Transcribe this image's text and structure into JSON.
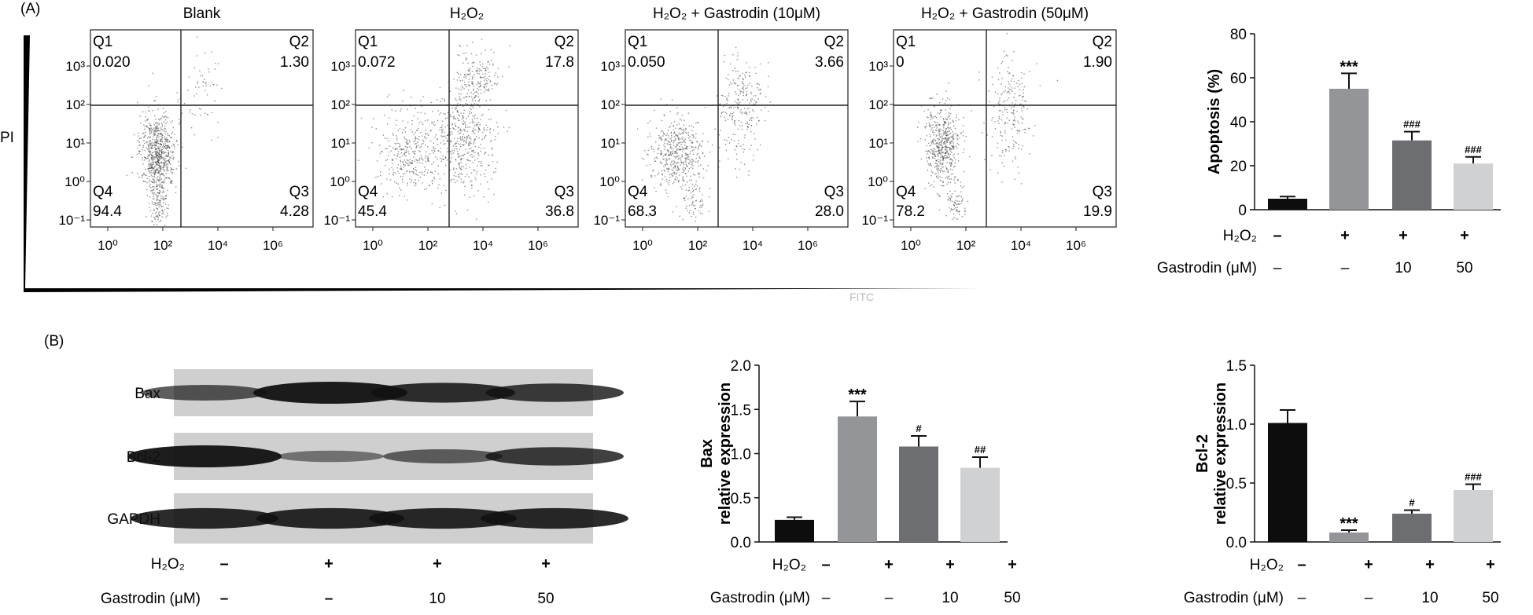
{
  "panel_labels": {
    "a": "(A)",
    "b": "(B)"
  },
  "flow": {
    "y_axis_label": "PI",
    "x_axis_label": "FITC",
    "x_ticks": [
      "10⁰",
      "10²",
      "10⁴",
      "10⁶"
    ],
    "y_ticks": [
      "10³",
      "10²",
      "10¹",
      "10⁰",
      "10⁻¹"
    ],
    "plots": [
      {
        "title": "Blank",
        "q1": "0.020",
        "q2": "1.30",
        "q3": "4.28",
        "q4": "94.4"
      },
      {
        "title": "H₂O₂",
        "q1": "0.072",
        "q2": "17.8",
        "q3": "36.8",
        "q4": "45.4"
      },
      {
        "title": "H₂O₂ + Gastrodin (10μM)",
        "q1": "0.050",
        "q2": "3.66",
        "q3": "28.0",
        "q4": "68.3"
      },
      {
        "title": "H₂O₂ + Gastrodin (50μM)",
        "q1": "0",
        "q2": "1.90",
        "q3": "19.9",
        "q4": "78.2"
      }
    ],
    "quadrant_names": {
      "q1": "Q1",
      "q2": "Q2",
      "q3": "Q3",
      "q4": "Q4"
    }
  },
  "western": {
    "bands": [
      "Bax",
      "Bcl-2",
      "GAPDH"
    ],
    "intensity": {
      "Bax": [
        0.55,
        1.0,
        0.85,
        0.75
      ],
      "Bcl-2": [
        1.0,
        0.25,
        0.45,
        0.75
      ],
      "GAPDH": [
        0.9,
        0.9,
        0.9,
        0.9
      ]
    }
  },
  "conditions": {
    "h2o2_label": "H₂O₂",
    "gastrodin_label": "Gastrodin (μM)",
    "h2o2": [
      "–",
      "+",
      "+",
      "+"
    ],
    "gastrodin": [
      "–",
      "–",
      "10",
      "50"
    ]
  },
  "chart_data": [
    {
      "type": "bar",
      "id": "apoptosis",
      "ylabel": "Apoptosis (%)",
      "ylim": [
        0,
        80
      ],
      "yticks": [
        0,
        20,
        40,
        60,
        80
      ],
      "values": [
        5,
        55,
        31.5,
        21
      ],
      "errors": [
        1,
        7,
        4,
        3
      ],
      "significance": [
        "",
        "***",
        "###",
        "###"
      ],
      "colors": [
        "#0d0d0d",
        "#949599",
        "#6d6e71",
        "#cfd1d2"
      ]
    },
    {
      "type": "bar",
      "id": "bax",
      "ylabel_line1": "Bax",
      "ylabel_line2": "relative expression",
      "ylim": [
        0,
        2.0
      ],
      "yticks": [
        "0.0",
        "0.5",
        "1.0",
        "1.5",
        "2.0"
      ],
      "values": [
        0.25,
        1.42,
        1.08,
        0.84
      ],
      "errors": [
        0.03,
        0.17,
        0.12,
        0.12
      ],
      "significance": [
        "",
        "***",
        "#",
        "##"
      ],
      "colors": [
        "#0d0d0d",
        "#949599",
        "#6d6e71",
        "#cfd1d2"
      ]
    },
    {
      "type": "bar",
      "id": "bcl2",
      "ylabel_line1": "Bcl-2",
      "ylabel_line2": "relative expression",
      "ylim": [
        0,
        1.5
      ],
      "yticks": [
        "0.0",
        "0.5",
        "1.0",
        "1.5"
      ],
      "values": [
        1.01,
        0.08,
        0.24,
        0.44
      ],
      "errors": [
        0.11,
        0.02,
        0.03,
        0.05
      ],
      "significance": [
        "",
        "***",
        "#",
        "###"
      ],
      "colors": [
        "#0d0d0d",
        "#949599",
        "#6d6e71",
        "#cfd1d2"
      ]
    }
  ]
}
